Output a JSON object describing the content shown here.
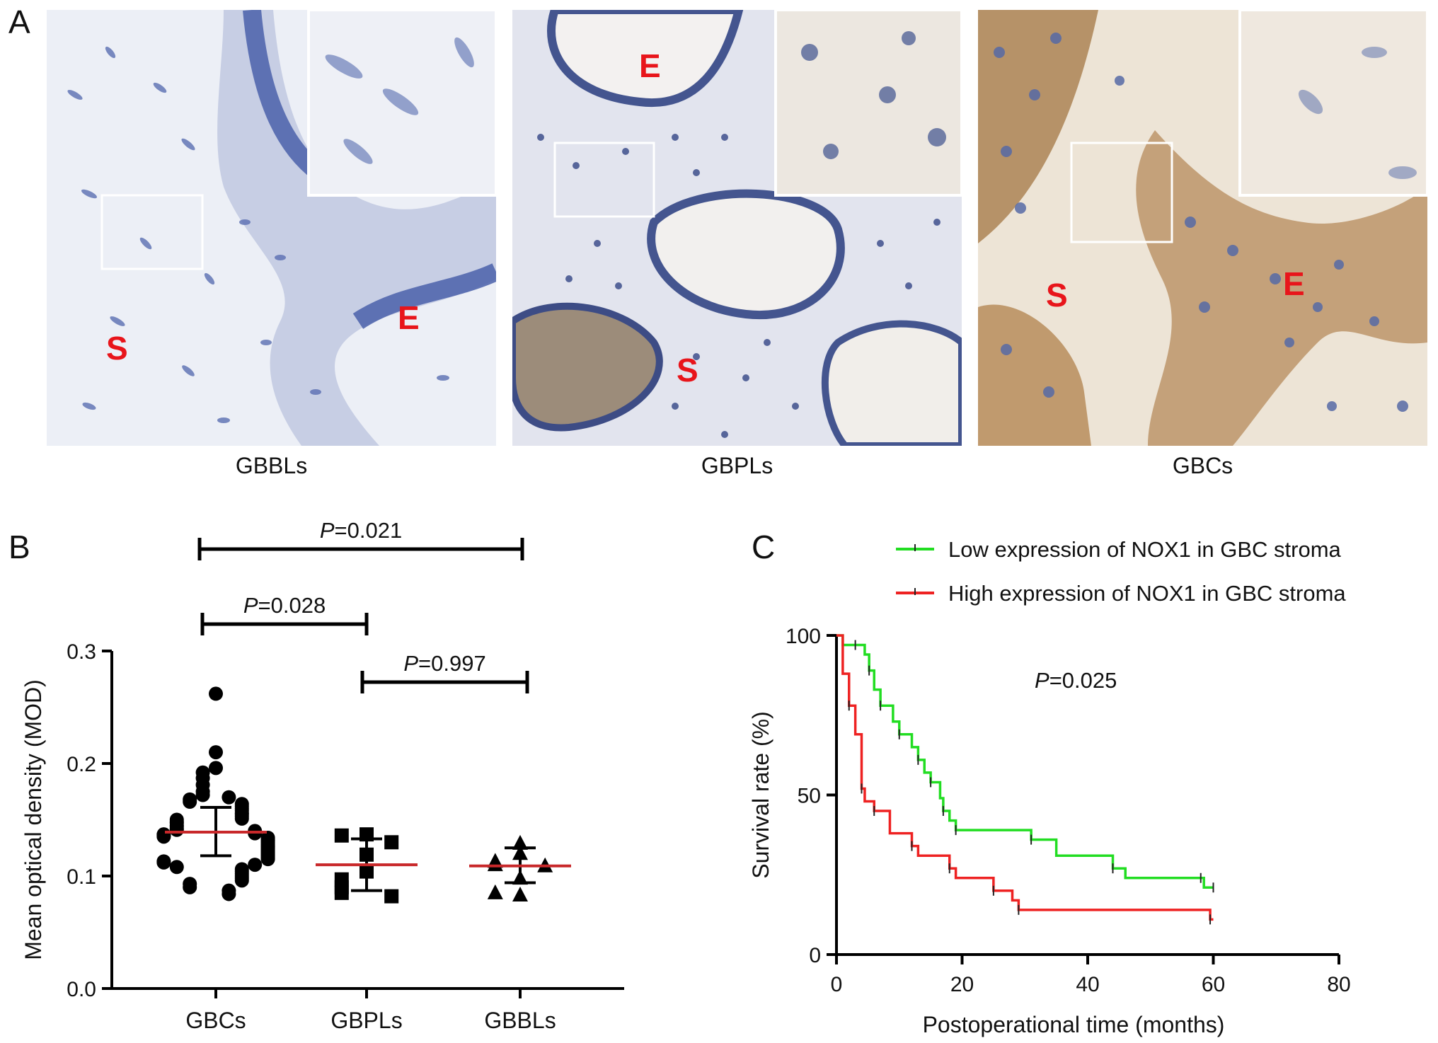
{
  "panel_a": {
    "letter": "A",
    "images": [
      {
        "caption": "GBBLs",
        "labels": {
          "stroma": "S",
          "epithelium": "E"
        }
      },
      {
        "caption": "GBPLs",
        "labels": {
          "stroma": "S",
          "epithelium": "E"
        }
      },
      {
        "caption": "GBCs",
        "labels": {
          "stroma": "S",
          "epithelium": "E"
        }
      }
    ],
    "colors": {
      "hematoxylin": "#5068ae",
      "dab_brown": "#b48c5a",
      "label_red": "#e8151b",
      "background": "#eef0f5"
    }
  },
  "panel_b": {
    "letter": "B"
  },
  "panel_c": {
    "letter": "C"
  },
  "chart_data": [
    {
      "type": "scatter",
      "panel": "B",
      "ylabel": "Mean optical density (MOD)",
      "xlabel": "",
      "ylim": [
        0.0,
        0.3
      ],
      "yticks": [
        "0.0",
        "0.1",
        "0.2",
        "0.3"
      ],
      "categories": [
        "GBCs",
        "GBPLs",
        "GBBLs"
      ],
      "markers": [
        "circle",
        "square",
        "triangle"
      ],
      "series": [
        {
          "category": "GBCs",
          "mean": 0.139,
          "sd_low": 0.118,
          "sd_high": 0.161,
          "values": [
            0.262,
            0.21,
            0.196,
            0.192,
            0.187,
            0.181,
            0.175,
            0.172,
            0.17,
            0.168,
            0.166,
            0.164,
            0.162,
            0.16,
            0.158,
            0.156,
            0.155,
            0.153,
            0.151,
            0.15,
            0.148,
            0.147,
            0.145,
            0.144,
            0.142,
            0.141,
            0.14,
            0.139,
            0.138,
            0.137,
            0.136,
            0.135,
            0.134,
            0.133,
            0.132,
            0.131,
            0.13,
            0.129,
            0.128,
            0.127,
            0.126,
            0.125,
            0.124,
            0.123,
            0.122,
            0.121,
            0.12,
            0.119,
            0.118,
            0.117,
            0.116,
            0.115,
            0.113,
            0.112,
            0.11,
            0.108,
            0.106,
            0.104,
            0.102,
            0.1,
            0.098,
            0.096,
            0.093,
            0.09,
            0.087,
            0.084
          ]
        },
        {
          "category": "GBPLs",
          "mean": 0.11,
          "sd_low": 0.087,
          "sd_high": 0.133,
          "values": [
            0.137,
            0.136,
            0.13,
            0.119,
            0.104,
            0.097,
            0.09,
            0.085,
            0.082
          ]
        },
        {
          "category": "GBBLs",
          "mean": 0.109,
          "sd_low": 0.094,
          "sd_high": 0.125,
          "values": [
            0.129,
            0.12,
            0.113,
            0.11,
            0.109,
            0.098,
            0.083,
            0.085
          ]
        }
      ],
      "mean_line_color": "#c8282a",
      "comparisons": [
        {
          "pair": [
            "GBCs",
            "GBBLs"
          ],
          "label": "P",
          "value": "=0.021"
        },
        {
          "pair": [
            "GBCs",
            "GBPLs"
          ],
          "label": "P",
          "value": "=0.028"
        },
        {
          "pair": [
            "GBPLs",
            "GBBLs"
          ],
          "label": "P",
          "value": "=0.997"
        }
      ]
    },
    {
      "type": "line",
      "subtype": "kaplan-meier",
      "panel": "C",
      "xlabel": "Postoperational time (months)",
      "ylabel": "Survival rate (%)",
      "xlim": [
        0,
        80
      ],
      "ylim": [
        0,
        100
      ],
      "xticks": [
        "0",
        "20",
        "40",
        "60",
        "80"
      ],
      "yticks": [
        "0",
        "50",
        "100"
      ],
      "legend_position": "top",
      "annotation": {
        "label": "P",
        "value": "=0.025"
      },
      "series": [
        {
          "name": "Low expression of NOX1 in GBC stroma",
          "color": "#22dd22",
          "steps": [
            [
              0,
              100
            ],
            [
              1,
              97
            ],
            [
              3,
              97
            ],
            [
              4.5,
              94
            ],
            [
              5.2,
              89
            ],
            [
              6,
              83
            ],
            [
              7,
              78
            ],
            [
              9,
              73
            ],
            [
              10,
              69
            ],
            [
              12,
              65
            ],
            [
              13,
              61
            ],
            [
              14,
              57
            ],
            [
              15,
              54
            ],
            [
              16.5,
              49
            ],
            [
              17,
              45
            ],
            [
              18,
              42
            ],
            [
              19,
              39
            ],
            [
              30,
              39
            ],
            [
              31,
              36
            ],
            [
              35,
              31
            ],
            [
              44,
              27
            ],
            [
              46,
              24
            ],
            [
              58,
              24
            ],
            [
              58.5,
              21
            ],
            [
              60,
              21
            ]
          ]
        },
        {
          "name": "High expression of NOX1 in GBC stroma",
          "color": "#ee2222",
          "steps": [
            [
              0,
              100
            ],
            [
              1,
              88
            ],
            [
              2,
              78
            ],
            [
              3,
              69
            ],
            [
              4,
              52
            ],
            [
              4.5,
              48
            ],
            [
              6,
              45
            ],
            [
              8.5,
              38
            ],
            [
              12,
              34
            ],
            [
              13,
              31
            ],
            [
              18,
              27
            ],
            [
              19,
              24
            ],
            [
              25,
              20
            ],
            [
              28,
              17
            ],
            [
              29,
              14
            ],
            [
              59,
              14
            ],
            [
              59.5,
              11
            ],
            [
              60,
              11
            ]
          ]
        }
      ]
    }
  ]
}
